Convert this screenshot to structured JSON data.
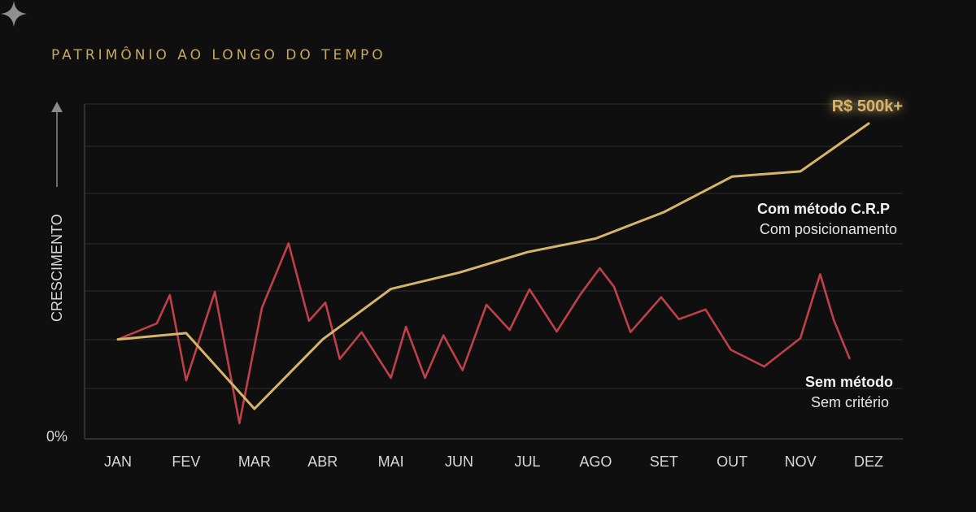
{
  "title": "PATRIMÔNIO AO LONGO DO TEMPO",
  "colors": {
    "background": "#0f0f0f",
    "gold": "#d6b46a",
    "red": "#c0404a",
    "grid": "#2c2c2c"
  },
  "chart_data": {
    "type": "line",
    "title": "PATRIMÔNIO AO LONGO DO TEMPO",
    "ylabel": "CRESCIMENTO",
    "xlabel": "",
    "y_tick_labels": [
      "0%"
    ],
    "categories": [
      "JAN",
      "FEV",
      "MAR",
      "ABR",
      "MAI",
      "JUN",
      "JUL",
      "AGO",
      "SET",
      "OUT",
      "NOV",
      "DEZ"
    ],
    "xlim": [
      0,
      11
    ],
    "ylim": [
      0,
      100
    ],
    "grid": true,
    "series": [
      {
        "name": "Com método C.R.P",
        "color": "#d6b46a",
        "points": [
          [
            0,
            31.5
          ],
          [
            1,
            33.5
          ],
          [
            2,
            9.5
          ],
          [
            3,
            31.5
          ],
          [
            4,
            47.5
          ],
          [
            5,
            52.7
          ],
          [
            6,
            59.2
          ],
          [
            7,
            63.5
          ],
          [
            8,
            71.9
          ],
          [
            9,
            83.2
          ],
          [
            10,
            84.8
          ],
          [
            11,
            100
          ]
        ]
      },
      {
        "name": "Sem método",
        "color": "#c0404a",
        "points": [
          [
            0,
            31.5
          ],
          [
            0.57,
            36.6
          ],
          [
            0.76,
            45.6
          ],
          [
            1,
            18.5
          ],
          [
            1.42,
            46.6
          ],
          [
            1.78,
            4.9
          ],
          [
            2.11,
            41.5
          ],
          [
            2.5,
            62
          ],
          [
            2.8,
            37.4
          ],
          [
            3.04,
            43.2
          ],
          [
            3.25,
            25.3
          ],
          [
            3.57,
            33.8
          ],
          [
            4,
            19.3
          ],
          [
            4.22,
            35.5
          ],
          [
            4.5,
            19.3
          ],
          [
            4.77,
            32.8
          ],
          [
            5.05,
            21.7
          ],
          [
            5.4,
            42.5
          ],
          [
            5.74,
            34.5
          ],
          [
            6.03,
            47.4
          ],
          [
            6.43,
            34
          ],
          [
            6.78,
            45.9
          ],
          [
            7.06,
            54.1
          ],
          [
            7.27,
            48.2
          ],
          [
            7.51,
            33.8
          ],
          [
            7.96,
            44.9
          ],
          [
            8.22,
            37.9
          ],
          [
            8.61,
            41
          ],
          [
            8.98,
            28.2
          ],
          [
            9.47,
            22.9
          ],
          [
            10,
            31.9
          ],
          [
            10.29,
            52.2
          ],
          [
            10.49,
            37.6
          ],
          [
            10.72,
            25.5
          ]
        ]
      }
    ],
    "annotations": {
      "peak_label": "R$ 500k+",
      "com_metodo_title": "Com método C.R.P",
      "com_metodo_subtitle": "Com posicionamento",
      "sem_metodo_title": "Sem método",
      "sem_metodo_subtitle": "Sem critério"
    }
  }
}
